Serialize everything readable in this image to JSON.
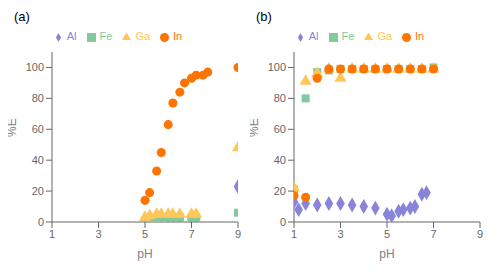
{
  "chart_data": [
    {
      "type": "scatter",
      "title": "(a)",
      "x_label": "pH",
      "y_label": "%E",
      "xlim": [
        1,
        9
      ],
      "ylim": [
        0,
        110
      ],
      "xticks": [
        1,
        3,
        5,
        7,
        9
      ],
      "yticks": [
        0,
        20,
        40,
        60,
        80,
        100
      ],
      "grid": false,
      "legend": "top",
      "series": [
        {
          "name": "Al",
          "marker": "diamond",
          "color": "#8884d8",
          "x": [
            5.0,
            5.2,
            5.5,
            5.7,
            6.0,
            6.2,
            6.5,
            7.0,
            7.2,
            9.0
          ],
          "values": [
            2,
            3,
            3,
            4,
            4,
            3,
            2,
            2,
            2,
            23
          ]
        },
        {
          "name": "Fe",
          "marker": "square",
          "color": "#82ca9d",
          "x": [
            5.0,
            5.2,
            5.5,
            5.7,
            6.0,
            6.2,
            6.5,
            7.0,
            7.2,
            9.0
          ],
          "values": [
            1,
            2,
            2,
            3,
            3,
            3,
            3,
            3,
            3,
            6
          ]
        },
        {
          "name": "Ga",
          "marker": "triangle",
          "color": "#ffc658",
          "x": [
            5.0,
            5.2,
            5.5,
            5.7,
            6.0,
            6.2,
            6.5,
            7.0,
            7.2,
            9.0
          ],
          "values": [
            3,
            4,
            5,
            5,
            5,
            5,
            5,
            5,
            5,
            48
          ]
        },
        {
          "name": "In",
          "marker": "circle",
          "color": "#ff7300",
          "x": [
            5.0,
            5.2,
            5.5,
            5.7,
            6.0,
            6.2,
            6.5,
            6.7,
            7.0,
            7.2,
            7.5,
            7.7,
            9.0
          ],
          "values": [
            14,
            19,
            33,
            45,
            63,
            77,
            84,
            90,
            93,
            95,
            95,
            97,
            100
          ]
        }
      ]
    },
    {
      "type": "scatter",
      "title": "(b)",
      "x_label": "pH",
      "y_label": "%E",
      "xlim": [
        1,
        9
      ],
      "ylim": [
        0,
        110
      ],
      "xticks": [
        1,
        3,
        5,
        7,
        9
      ],
      "yticks": [
        0,
        20,
        40,
        60,
        80,
        100
      ],
      "grid": false,
      "legend": "top",
      "series": [
        {
          "name": "Al",
          "marker": "diamond",
          "color": "#8884d8",
          "x": [
            1.0,
            1.2,
            1.5,
            2.0,
            2.5,
            3.0,
            3.5,
            4.0,
            4.5,
            5.0,
            5.2,
            5.5,
            5.7,
            6.0,
            6.2,
            6.5,
            6.7
          ],
          "values": [
            13,
            8,
            12,
            11,
            12,
            12,
            11,
            10,
            9,
            5,
            4,
            7,
            8,
            9,
            10,
            18,
            19
          ]
        },
        {
          "name": "Fe",
          "marker": "square",
          "color": "#82ca9d",
          "x": [
            1.0,
            1.5,
            2.0,
            2.5,
            3.0,
            3.5,
            4.0,
            4.5,
            5.0,
            5.5,
            6.0,
            6.5,
            7.0
          ],
          "values": [
            21,
            80,
            97,
            98,
            99,
            99,
            99,
            99,
            99,
            99,
            99,
            99,
            100
          ]
        },
        {
          "name": "Ga",
          "marker": "triangle",
          "color": "#ffc658",
          "x": [
            1.0,
            1.5,
            2.0,
            2.5,
            3.0,
            3.5,
            4.0,
            4.5,
            5.0,
            5.5,
            6.0,
            6.5,
            7.0
          ],
          "values": [
            22,
            91,
            96,
            99,
            93,
            99,
            99,
            99,
            99,
            99,
            99,
            99,
            99
          ]
        },
        {
          "name": "In",
          "marker": "circle",
          "color": "#ff7300",
          "x": [
            1.0,
            1.5,
            2.0,
            2.5,
            3.0,
            3.5,
            4.0,
            4.5,
            5.0,
            5.5,
            6.0,
            6.5,
            7.0
          ],
          "values": [
            17,
            16,
            93,
            99,
            99,
            99,
            99,
            99,
            99,
            99,
            99,
            99,
            99
          ]
        }
      ]
    }
  ]
}
